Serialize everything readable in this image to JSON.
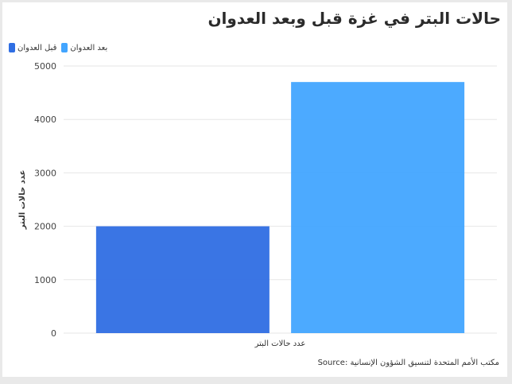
{
  "chart_data": {
    "type": "bar",
    "title": "حالات البتر في غزة قبل وبعد العدوان",
    "categories": [
      "عدد حالات البتر"
    ],
    "series": [
      {
        "name": "قبل العدوان",
        "values": [
          2000
        ],
        "color": "#2f6ee3"
      },
      {
        "name": "بعد العدوان",
        "values": [
          4700
        ],
        "color": "#42a5ff"
      }
    ],
    "ylabel": "عدد حالات البتر",
    "ylim": [
      0,
      5000
    ],
    "yticks": [
      "0",
      "1000",
      "2000",
      "3000",
      "4000",
      "5000"
    ],
    "grid": true,
    "legend_position": "top-left",
    "source": "مكتب الأمم المتحدة لتنسيق الشؤون الإنسانية :Source"
  }
}
